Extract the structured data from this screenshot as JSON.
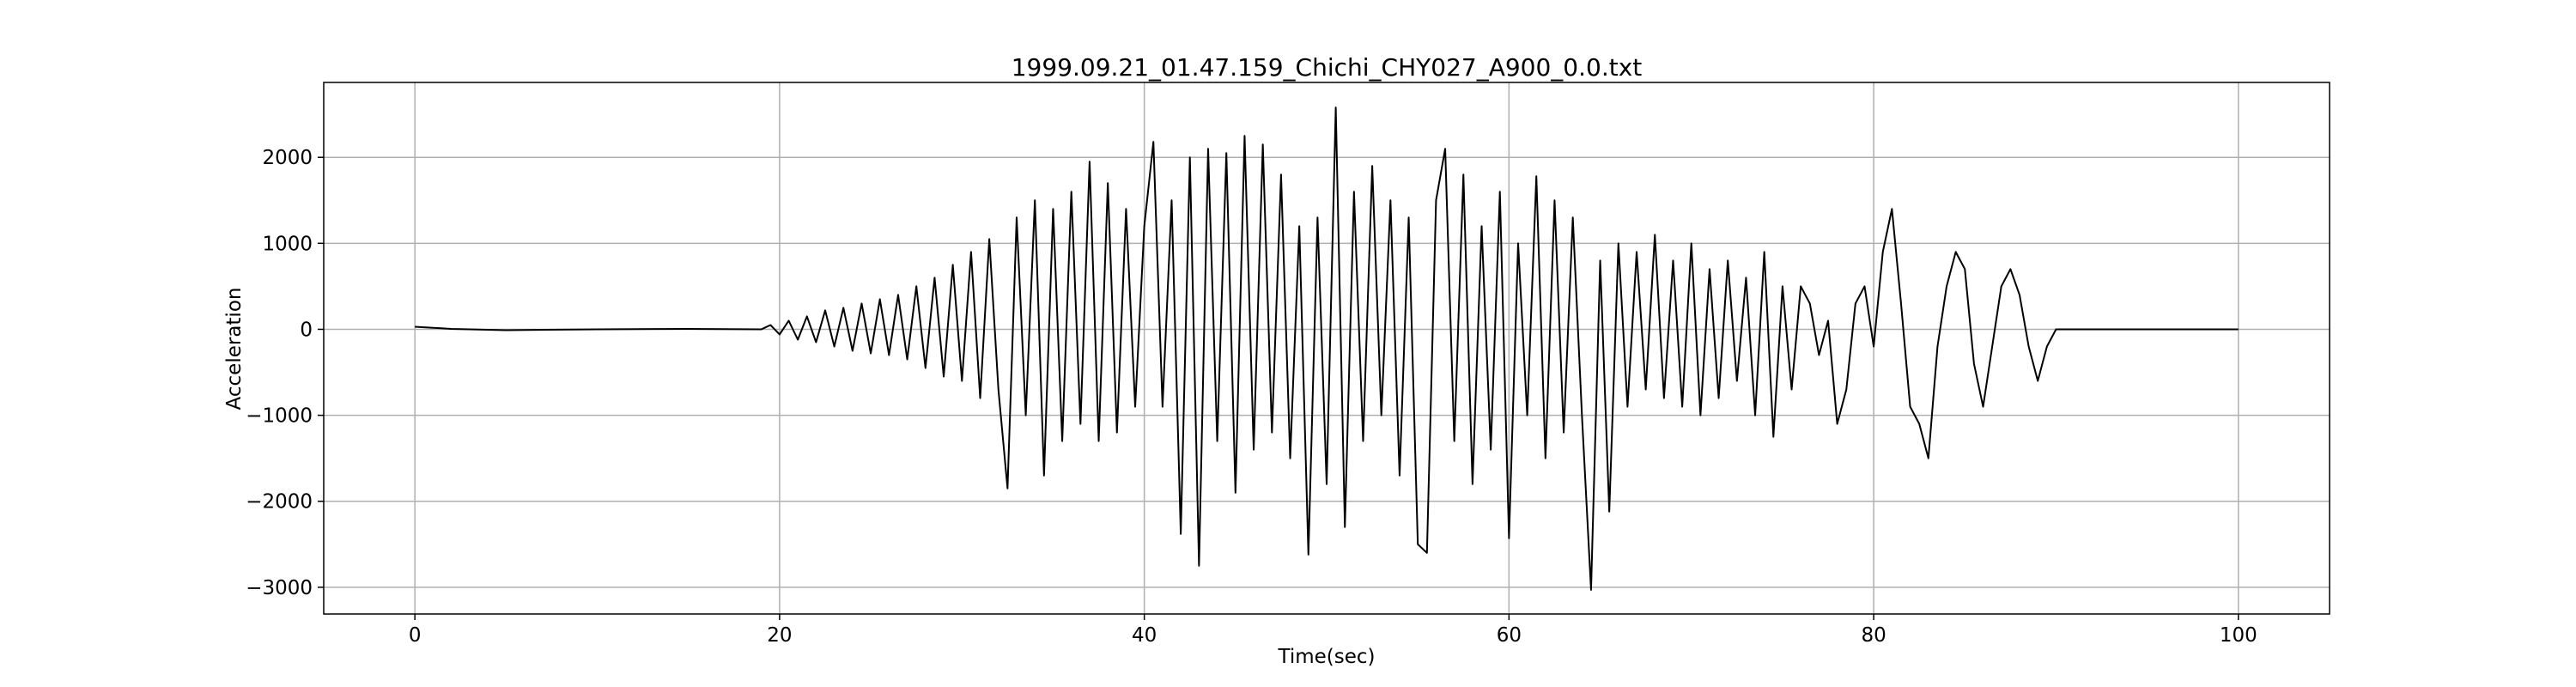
{
  "chart_data": {
    "type": "line",
    "title": "1999.09.21_01.47.159_Chichi_CHY027_A900_0.0.txt",
    "x_label": "Time(sec)",
    "y_label": "Acceleration",
    "xlim": [
      -5,
      105
    ],
    "ylim": [
      -3311,
      2871
    ],
    "xticks": [
      0,
      20,
      40,
      60,
      80,
      100
    ],
    "yticks": [
      {
        "value": -3000,
        "label": "−3000"
      },
      {
        "value": -2000,
        "label": "−2000"
      },
      {
        "value": -1000,
        "label": "−1000"
      },
      0,
      1000,
      2000
    ],
    "grid": true,
    "x": [
      0,
      2,
      5,
      10,
      15,
      19,
      19.5,
      20,
      20.5,
      21,
      21.5,
      22,
      22.5,
      23,
      23.5,
      24,
      24.5,
      25,
      25.5,
      26,
      26.5,
      27,
      27.5,
      28,
      28.5,
      29,
      29.5,
      30,
      30.5,
      31,
      31.5,
      32,
      32.5,
      33,
      33.5,
      34,
      34.5,
      35,
      35.5,
      36,
      36.5,
      37,
      37.5,
      38,
      38.5,
      39,
      39.5,
      40,
      40.5,
      41,
      41.5,
      42,
      42.5,
      43,
      43.5,
      44,
      44.5,
      45,
      45.5,
      46,
      46.5,
      47,
      47.5,
      48,
      48.5,
      49,
      49.5,
      50,
      50.5,
      51,
      51.5,
      52,
      52.5,
      53,
      53.5,
      54,
      54.5,
      55,
      55.5,
      56,
      56.5,
      57,
      57.5,
      58,
      58.5,
      59,
      59.5,
      60,
      60.5,
      61,
      61.5,
      62,
      62.5,
      63,
      63.5,
      64,
      64.5,
      65,
      65.5,
      66,
      66.5,
      67,
      67.5,
      68,
      68.5,
      69,
      69.5,
      70,
      70.5,
      71,
      71.5,
      72,
      72.5,
      73,
      73.5,
      74,
      74.5,
      75,
      75.5,
      76,
      76.5,
      77,
      77.5,
      78,
      78.5,
      79,
      79.5,
      80,
      80.5,
      81,
      81.5,
      82,
      82.5,
      83,
      83.5,
      84,
      84.5,
      85,
      85.5,
      86,
      86.5,
      87,
      87.5,
      88,
      88.5,
      89,
      89.5,
      90,
      100
    ],
    "series": [
      {
        "color": "#000000",
        "values": [
          30,
          5,
          -10,
          0,
          5,
          0,
          50,
          -60,
          100,
          -120,
          150,
          -150,
          220,
          -200,
          250,
          -250,
          300,
          -280,
          350,
          -300,
          400,
          -350,
          500,
          -450,
          600,
          -550,
          750,
          -600,
          900,
          -800,
          1050,
          -700,
          -1850,
          1300,
          -1000,
          1500,
          -1700,
          1400,
          -1300,
          1600,
          -1100,
          1950,
          -1300,
          1700,
          -1200,
          1400,
          -900,
          1200,
          2180,
          -900,
          1500,
          -2380,
          2000,
          -2750,
          2100,
          -1300,
          2050,
          -1900,
          2250,
          -1400,
          2150,
          -1200,
          1800,
          -1500,
          1200,
          -2620,
          1300,
          -1800,
          2580,
          -2300,
          1600,
          -1300,
          1900,
          -1000,
          1500,
          -1700,
          1300,
          -2500,
          -2600,
          1500,
          2100,
          -1300,
          1800,
          -1800,
          1200,
          -1400,
          1600,
          -2430,
          1000,
          -1000,
          1780,
          -1500,
          1500,
          -1200,
          1300,
          -1000,
          -3030,
          800,
          -2120,
          1000,
          -900,
          900,
          -700,
          1100,
          -800,
          800,
          -900,
          1000,
          -1000,
          700,
          -800,
          800,
          -600,
          600,
          -1000,
          900,
          -1250,
          500,
          -700,
          500,
          300,
          -300,
          100,
          -1100,
          -700,
          300,
          500,
          -200,
          900,
          1400,
          300,
          -900,
          -1100,
          -1500,
          -200,
          500,
          900,
          700,
          -400,
          -900,
          -200,
          500,
          700,
          400,
          -200,
          -600,
          -200,
          0,
          0
        ]
      }
    ]
  }
}
